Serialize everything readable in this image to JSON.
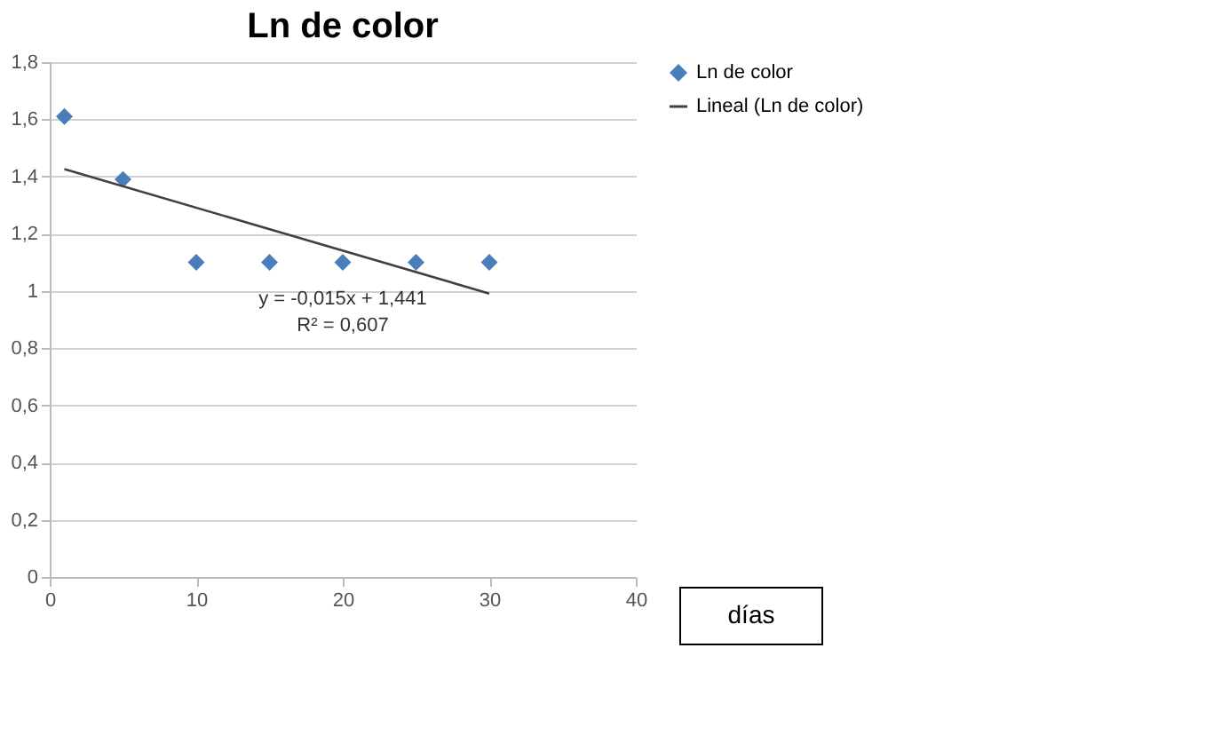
{
  "chart_data": {
    "type": "scatter",
    "title": "Ln de color",
    "xlabel": "días",
    "series": [
      {
        "name": "Ln de color",
        "color": "#4a7ebb",
        "marker": "diamond",
        "x": [
          1,
          5,
          10,
          15,
          20,
          25,
          30
        ],
        "values": [
          1.61,
          1.39,
          1.1,
          1.1,
          1.1,
          1.1,
          1.1
        ]
      },
      {
        "name": "Lineal (Ln de color)",
        "type": "line",
        "color": "#404040",
        "marker": "none",
        "line_style": "solid",
        "x": [
          1,
          30
        ],
        "values": [
          1.426,
          0.991
        ]
      }
    ],
    "annotations": [
      "y = -0,015x + 1,441",
      "R² = 0,607"
    ],
    "xlim": [
      0,
      40
    ],
    "xticks": [
      0,
      10,
      20,
      30,
      40
    ],
    "ylim": [
      0,
      1.8
    ],
    "yticks": [
      0,
      {
        "value": 0.2,
        "label": "0,2"
      },
      {
        "value": 0.4,
        "label": "0,4"
      },
      {
        "value": 0.6,
        "label": "0,6"
      },
      {
        "value": 0.8,
        "label": "0,8"
      },
      1,
      {
        "value": 1.2,
        "label": "1,2"
      },
      {
        "value": 1.4,
        "label": "1,4"
      },
      {
        "value": 1.6,
        "label": "1,6"
      },
      {
        "value": 1.8,
        "label": "1,8"
      }
    ],
    "grid": "y",
    "legend": "right"
  }
}
